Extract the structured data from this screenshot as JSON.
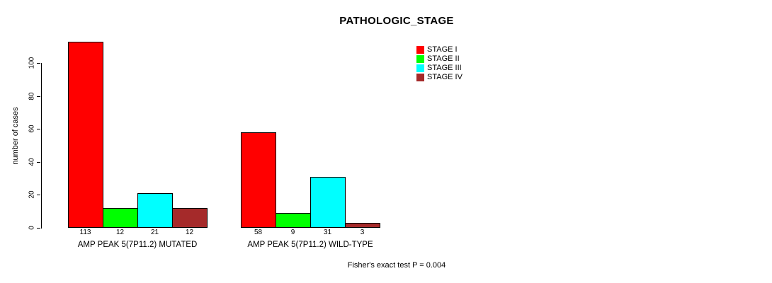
{
  "chart_data": {
    "type": "bar",
    "title": "PATHOLOGIC_STAGE",
    "ylabel": "number of cases",
    "xlabel": "",
    "ylim": [
      0,
      113
    ],
    "yticks": [
      0,
      20,
      40,
      60,
      80,
      100
    ],
    "grid": false,
    "legend_position": "top-right",
    "categories": [
      "AMP PEAK 5(7P11.2) MUTATED",
      "AMP PEAK 5(7P11.2) WILD-TYPE"
    ],
    "series": [
      {
        "name": "STAGE I",
        "color": "#FF0000",
        "values": [
          113,
          58
        ]
      },
      {
        "name": "STAGE II",
        "color": "#00FF00",
        "values": [
          12,
          9
        ]
      },
      {
        "name": "STAGE III",
        "color": "#00FFFF",
        "values": [
          21,
          31
        ]
      },
      {
        "name": "STAGE IV",
        "color": "#A52A2A",
        "values": [
          12,
          3
        ]
      }
    ],
    "bar_value_labels": [
      [
        "113",
        "12",
        "21",
        "12"
      ],
      [
        "58",
        "9",
        "31",
        "3"
      ]
    ],
    "footnote": "Fisher's exact test P = 0.004"
  }
}
